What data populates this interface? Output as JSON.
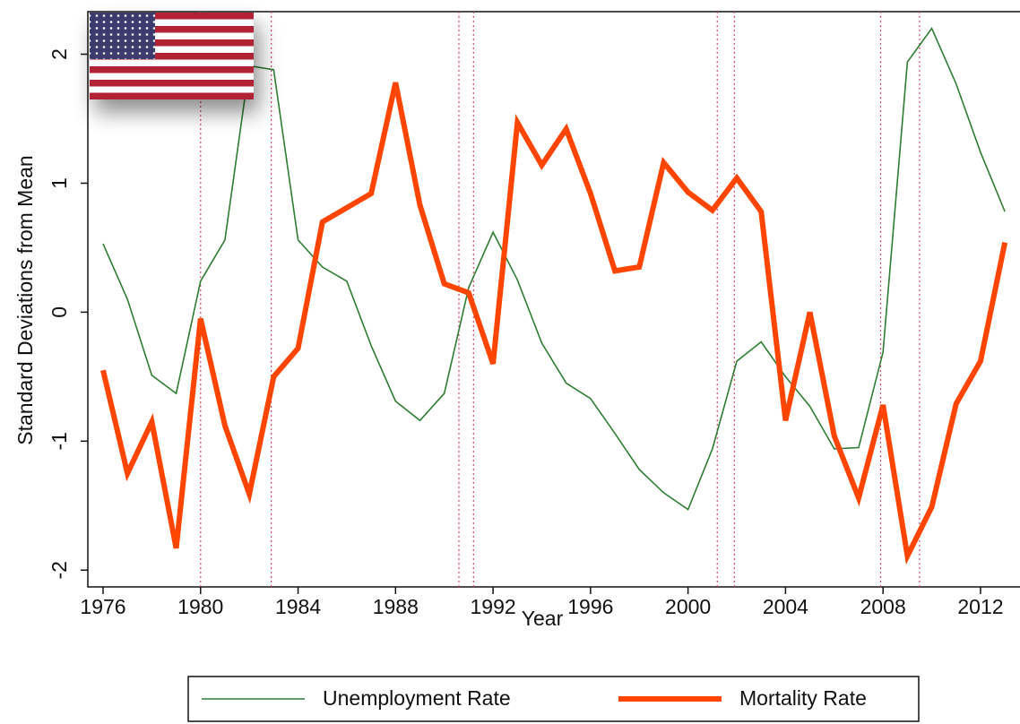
{
  "chart_data": {
    "type": "line",
    "x_label": "Year",
    "y_label": "Standard Deviations from Mean",
    "x": [
      1976,
      1977,
      1978,
      1979,
      1980,
      1981,
      1982,
      1983,
      1984,
      1985,
      1986,
      1987,
      1988,
      1989,
      1990,
      1991,
      1992,
      1993,
      1994,
      1995,
      1996,
      1997,
      1998,
      1999,
      2000,
      2001,
      2002,
      2003,
      2004,
      2005,
      2006,
      2007,
      2008,
      2009,
      2010,
      2011,
      2012,
      2013
    ],
    "series": [
      {
        "name": "Unemployment Rate",
        "color": "#2e7d32",
        "width": 1.6,
        "values": [
          0.53,
          0.1,
          -0.49,
          -0.63,
          0.24,
          0.56,
          1.91,
          1.88,
          0.56,
          0.35,
          0.24,
          -0.26,
          -0.69,
          -0.84,
          -0.63,
          0.19,
          0.62,
          0.25,
          -0.24,
          -0.55,
          -0.67,
          -0.94,
          -1.22,
          -1.4,
          -1.53,
          -1.06,
          -0.38,
          -0.23,
          -0.5,
          -0.73,
          -1.06,
          -1.05,
          -0.31,
          1.94,
          2.2,
          1.77,
          1.24,
          0.78
        ]
      },
      {
        "name": "Mortality Rate",
        "color": "#ff4500",
        "width": 6,
        "values": [
          -0.45,
          -1.25,
          -0.85,
          -1.83,
          -0.05,
          -0.88,
          -1.41,
          -0.5,
          -0.28,
          0.7,
          0.81,
          0.92,
          1.78,
          0.83,
          0.22,
          0.15,
          -0.4,
          1.47,
          1.14,
          1.42,
          0.92,
          0.32,
          0.35,
          1.16,
          0.93,
          0.79,
          1.04,
          0.78,
          -0.84,
          0,
          -0.96,
          -1.44,
          -0.72,
          -1.89,
          -1.51,
          -0.71,
          -0.38,
          0.54
        ]
      }
    ],
    "recession_lines": [
      1980.0,
      1982.9,
      1990.6,
      1991.2,
      2001.2,
      2001.9,
      2007.9,
      2009.5
    ],
    "recession_color": "#d9466b",
    "xlim": [
      1975.375,
      2013.62
    ],
    "ylim": [
      -2.13,
      2.33
    ],
    "xticks": [
      1976,
      1980,
      1984,
      1988,
      1992,
      1996,
      2000,
      2004,
      2008,
      2012
    ],
    "yticks": [
      -2,
      -1,
      0,
      1,
      2
    ],
    "legend": "bottom"
  }
}
